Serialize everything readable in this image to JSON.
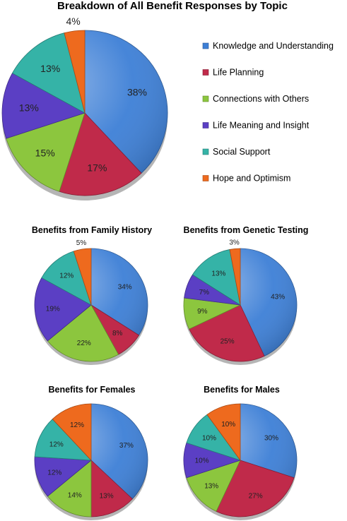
{
  "chart_data": [
    {
      "type": "pie",
      "title": "Breakdown of All Benefit Responses by Topic",
      "categories": [
        "Knowledge and Understanding",
        "Life Planning",
        "Connections with Others",
        "Life Meaning and Insight",
        "Social Support",
        "Hope and Optimism"
      ],
      "values": [
        38,
        17,
        15,
        13,
        13,
        4
      ],
      "labels": [
        "38%",
        "17%",
        "15%",
        "13%",
        "13%",
        "4%"
      ],
      "legend": "right"
    },
    {
      "type": "pie",
      "title": "Benefits from Family History",
      "categories": [
        "Knowledge and Understanding",
        "Life Planning",
        "Connections with Others",
        "Life Meaning and Insight",
        "Social Support",
        "Hope and Optimism"
      ],
      "values": [
        34,
        8,
        22,
        19,
        12,
        5
      ],
      "labels": [
        "34%",
        "8%",
        "22%",
        "19%",
        "12%",
        "5%"
      ]
    },
    {
      "type": "pie",
      "title": "Benefits from Genetic Testing",
      "categories": [
        "Knowledge and Understanding",
        "Life Planning",
        "Connections with Others",
        "Life Meaning and Insight",
        "Social Support",
        "Hope and Optimism"
      ],
      "values": [
        43,
        25,
        9,
        7,
        13,
        3
      ],
      "labels": [
        "43%",
        "25%",
        "9%",
        "7%",
        "13%",
        "3%"
      ]
    },
    {
      "type": "pie",
      "title": "Benefits for Females",
      "categories": [
        "Knowledge and Understanding",
        "Life Planning",
        "Connections with Others",
        "Life Meaning and Insight",
        "Social Support",
        "Hope and Optimism"
      ],
      "values": [
        37,
        13,
        14,
        12,
        12,
        12
      ],
      "labels": [
        "37%",
        "13%",
        "14%",
        "12%",
        "12%",
        "12%"
      ]
    },
    {
      "type": "pie",
      "title": "Benefits for Males",
      "categories": [
        "Knowledge and Understanding",
        "Life Planning",
        "Connections with Others",
        "Life Meaning and Insight",
        "Social Support",
        "Hope and Optimism"
      ],
      "values": [
        30,
        27,
        13,
        10,
        10,
        10
      ],
      "labels": [
        "30%",
        "27%",
        "13%",
        "10%",
        "10%",
        "10%"
      ]
    }
  ],
  "legend": {
    "items": [
      {
        "label": "Knowledge and Understanding",
        "color": "#3d7fd6"
      },
      {
        "label": "Life Planning",
        "color": "#c02a4a"
      },
      {
        "label": "Connections with Others",
        "color": "#8cc63e"
      },
      {
        "label": "Life Meaning and Insight",
        "color": "#5b3fc4"
      },
      {
        "label": "Social Support",
        "color": "#35b3a7"
      },
      {
        "label": "Hope and Optimism",
        "color": "#ee6a1e"
      }
    ]
  }
}
